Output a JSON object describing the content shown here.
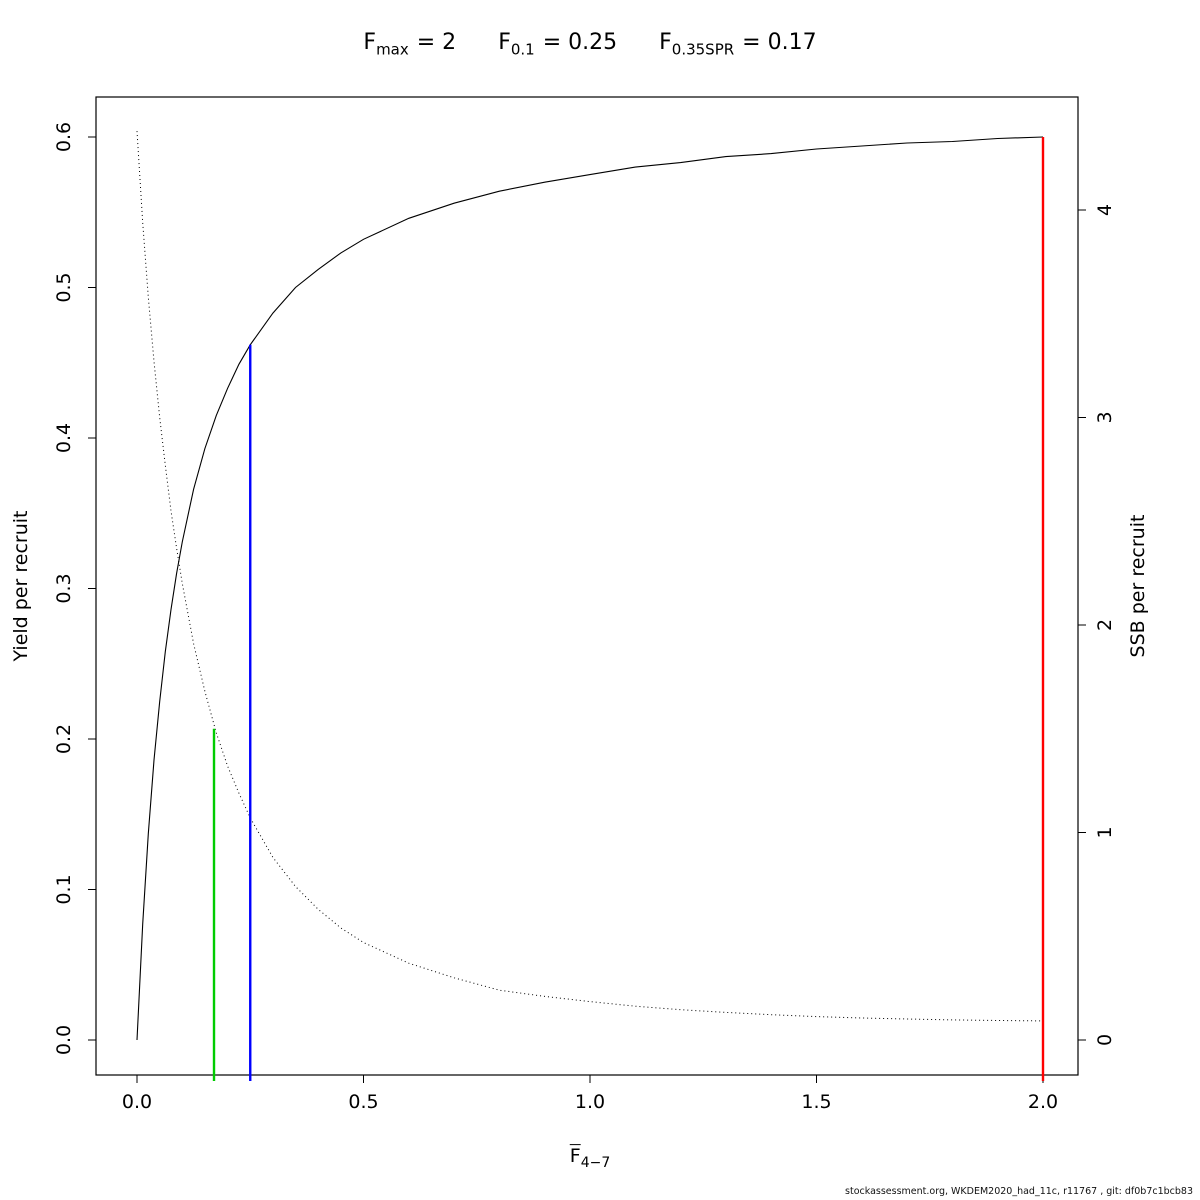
{
  "title": {
    "parts": [
      {
        "base": "F",
        "sub": "max",
        "eq": "= 2"
      },
      {
        "base": "F",
        "sub": "0.1",
        "eq": "= 0.25"
      },
      {
        "base": "F",
        "sub": "0.35SPR",
        "eq": "= 0.17"
      }
    ]
  },
  "footer": "stockassessment.org, WKDEM2020_had_11c, r11767 , git: df0b7c1bcb83",
  "chart_data": {
    "type": "line",
    "title": "Fmax = 2 ; F0.1 = 0.25 ; F0.35SPR = 0.17",
    "grid": false,
    "legend": false,
    "x_axis": {
      "label_base": "F",
      "label_sub": "4−7",
      "ticks": [
        "0.0",
        "0.5",
        "1.0",
        "1.5",
        "2.0"
      ],
      "range": [
        0,
        2
      ]
    },
    "y_left": {
      "label": "Yield per recruit",
      "ticks": [
        "0.0",
        "0.1",
        "0.2",
        "0.3",
        "0.4",
        "0.5",
        "0.6"
      ],
      "range": [
        0,
        0.6
      ]
    },
    "y_right": {
      "label": "SSB per recruit",
      "ticks": [
        "0",
        "1",
        "2",
        "3",
        "4"
      ],
      "range": [
        0,
        4.55
      ]
    },
    "x": [
      0,
      0.0125,
      0.025,
      0.0375,
      0.05,
      0.0625,
      0.075,
      0.0875,
      0.1,
      0.125,
      0.15,
      0.175,
      0.2,
      0.225,
      0.25,
      0.3,
      0.35,
      0.4,
      0.45,
      0.5,
      0.6,
      0.7,
      0.8,
      0.9,
      1.0,
      1.1,
      1.2,
      1.3,
      1.4,
      1.5,
      1.6,
      1.7,
      1.8,
      1.9,
      2.0
    ],
    "series": [
      {
        "name": "yield-per-recruit-curve",
        "axis": "left",
        "style": "solid",
        "color": "#000000",
        "values": [
          0,
          0.077,
          0.137,
          0.186,
          0.225,
          0.258,
          0.286,
          0.31,
          0.331,
          0.366,
          0.393,
          0.415,
          0.433,
          0.449,
          0.462,
          0.483,
          0.5,
          0.512,
          0.523,
          0.532,
          0.546,
          0.556,
          0.564,
          0.57,
          0.575,
          0.58,
          0.583,
          0.587,
          0.589,
          0.592,
          0.594,
          0.596,
          0.597,
          0.599,
          0.6
        ]
      },
      {
        "name": "ssb-per-recruit-curve",
        "axis": "right",
        "style": "dotted",
        "color": "#000000",
        "values": [
          4.38,
          3.94,
          3.58,
          3.27,
          3.0,
          2.77,
          2.55,
          2.37,
          2.2,
          1.91,
          1.68,
          1.48,
          1.32,
          1.19,
          1.07,
          0.88,
          0.74,
          0.63,
          0.54,
          0.47,
          0.37,
          0.3,
          0.24,
          0.21,
          0.185,
          0.163,
          0.146,
          0.133,
          0.122,
          0.113,
          0.106,
          0.101,
          0.097,
          0.094,
          0.092
        ]
      }
    ],
    "reference_lines": [
      {
        "name": "F 0.35SPR",
        "x": 0.17,
        "top_value": 1.5,
        "top_axis": "right",
        "color": "#00CC00"
      },
      {
        "name": "F 0.1",
        "x": 0.25,
        "top_value": 0.462,
        "top_axis": "left",
        "color": "#0000FF"
      },
      {
        "name": "F max",
        "x": 2.0,
        "top_value": 0.6,
        "top_axis": "left",
        "color": "#FF0000"
      }
    ]
  }
}
